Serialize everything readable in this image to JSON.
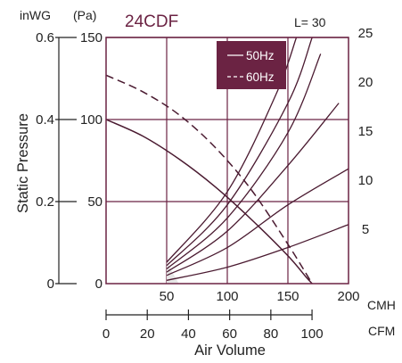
{
  "chart_data": {
    "type": "line",
    "title": "24CDF",
    "xlabel": "Air Volume",
    "ylabel": "Static Pressure",
    "x_unit_primary": "CMH",
    "x_unit_secondary": "CFM",
    "y_unit_inwg": "inWG",
    "y_unit_pa": "(Pa)",
    "xlim": [
      0,
      200
    ],
    "ylim": [
      0,
      150
    ],
    "x_ticks": [
      "50",
      "100",
      "150",
      "200"
    ],
    "cfm_ticks": [
      "0",
      "20",
      "40",
      "60",
      "80",
      "100"
    ],
    "cfm_tick_values": [
      0,
      20,
      40,
      60,
      80,
      100
    ],
    "y_ticks_pa": [
      "0",
      "50",
      "100",
      "150"
    ],
    "y_ticks_inwg": [
      "0",
      "0.2",
      "0.4",
      "0.6"
    ],
    "duct_length_label": "L=  30",
    "duct_length_ticks": [
      "25",
      "20",
      "15",
      "10",
      "5"
    ],
    "duct_length_tick_values": [
      25,
      20,
      15,
      10,
      5
    ],
    "grid": true,
    "legend": {
      "position": "top-right",
      "entries": [
        "50Hz",
        "60Hz"
      ]
    },
    "series": [
      {
        "name": "50Hz",
        "style": "solid",
        "x": [
          0,
          30,
          60,
          90,
          120,
          150,
          165,
          170
        ],
        "y": [
          100,
          90,
          76,
          59,
          39,
          17,
          4,
          0
        ]
      },
      {
        "name": "60Hz",
        "style": "dashed",
        "x": [
          0,
          30,
          60,
          90,
          120,
          150,
          170
        ],
        "y": [
          127,
          117,
          103,
          83,
          57,
          24,
          0
        ]
      }
    ],
    "duct_curves": [
      {
        "L": 5,
        "x": [
          50,
          100,
          150,
          200
        ],
        "y": [
          2,
          10,
          22,
          36
        ]
      },
      {
        "L": 10,
        "x": [
          50,
          100,
          150,
          200
        ],
        "y": [
          5,
          22,
          48,
          70
        ]
      },
      {
        "L": 15,
        "x": [
          50,
          100,
          150,
          192
        ],
        "y": [
          7,
          32,
          72,
          110
        ]
      },
      {
        "L": 20,
        "x": [
          50,
          100,
          150,
          177
        ],
        "y": [
          9,
          40,
          92,
          140
        ]
      },
      {
        "L": 25,
        "x": [
          50,
          100,
          150,
          170
        ],
        "y": [
          11,
          48,
          110,
          150
        ]
      },
      {
        "L": 30,
        "x": [
          50,
          100,
          140,
          157
        ],
        "y": [
          13,
          56,
          115,
          150
        ]
      }
    ],
    "colors": {
      "curve": "#4a1a30",
      "grid": "#6b2343",
      "title": "#6b2343",
      "legend_bg": "#6b2343"
    }
  }
}
